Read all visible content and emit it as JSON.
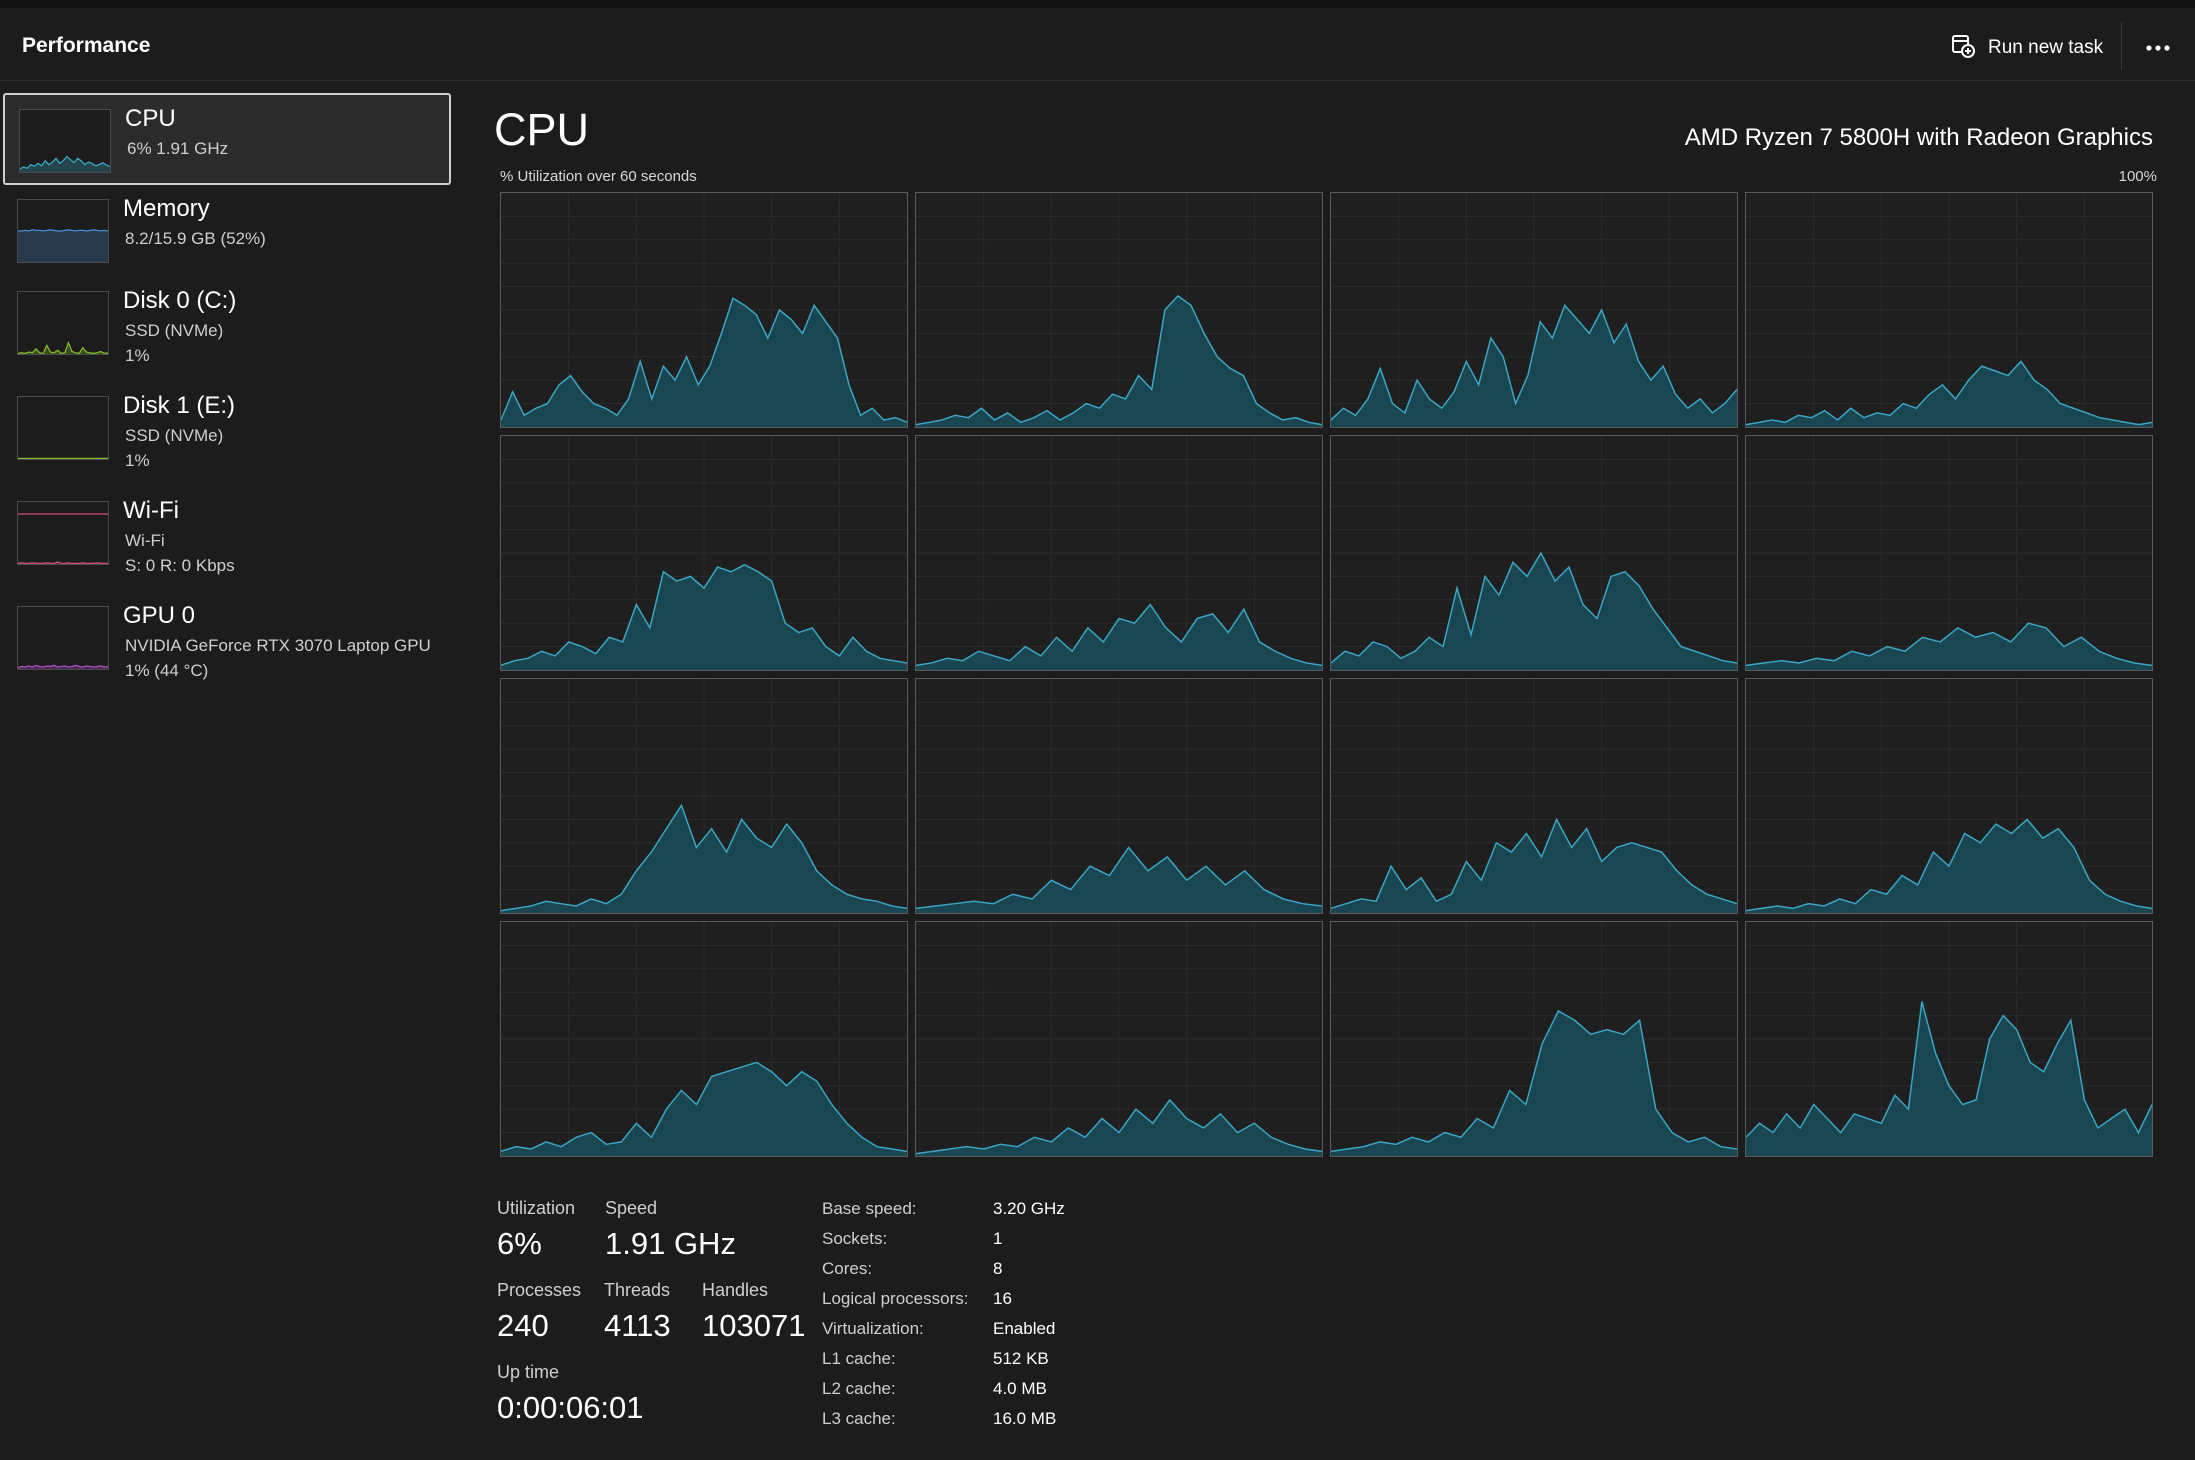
{
  "header": {
    "title": "Performance",
    "run_task_label": "Run new task",
    "run_task_icon": "run-task-icon",
    "more_icon": "more-options-icon"
  },
  "sidebar": {
    "items": [
      {
        "name": "CPU",
        "line1": "6%  1.91 GHz",
        "line2": "",
        "selected": true,
        "color": "#3ba6c4"
      },
      {
        "name": "Memory",
        "line1": "8.2/15.9 GB (52%)",
        "line2": "",
        "selected": false,
        "color": "#4a8fd6"
      },
      {
        "name": "Disk 0 (C:)",
        "line1": "SSD (NVMe)",
        "line2": "1%",
        "selected": false,
        "color": "#7fba2c"
      },
      {
        "name": "Disk 1 (E:)",
        "line1": "SSD (NVMe)",
        "line2": "1%",
        "selected": false,
        "color": "#7fba2c"
      },
      {
        "name": "Wi-Fi",
        "line1": "Wi-Fi",
        "line2": "S: 0  R: 0 Kbps",
        "selected": false,
        "color": "#d14b7a"
      },
      {
        "name": "GPU 0",
        "line1": "NVIDIA GeForce RTX 3070 Laptop GPU",
        "line2": "1%  (44 °C)",
        "selected": false,
        "color": "#b150c7"
      }
    ]
  },
  "main": {
    "title": "CPU",
    "model": "AMD Ryzen 7 5800H with Radeon Graphics",
    "graph_caption": "% Utilization over 60 seconds",
    "graph_max": "100%",
    "line_color": "#3ba6c4",
    "fill_color": "#1a4652"
  },
  "chart_data": {
    "type": "area",
    "title": "% Utilization over 60 seconds",
    "ylim": [
      0,
      100
    ],
    "logical_processors": [
      {
        "values": [
          3,
          15,
          5,
          8,
          10,
          18,
          22,
          15,
          10,
          8,
          5,
          12,
          28,
          12,
          26,
          20,
          30,
          18,
          26,
          40,
          55,
          52,
          48,
          38,
          50,
          46,
          40,
          52,
          45,
          38,
          18,
          5,
          8,
          3,
          4,
          2
        ]
      },
      {
        "values": [
          1,
          2,
          3,
          5,
          4,
          8,
          3,
          6,
          2,
          4,
          7,
          3,
          6,
          10,
          8,
          14,
          12,
          22,
          16,
          50,
          56,
          52,
          40,
          30,
          25,
          22,
          10,
          6,
          3,
          4,
          2,
          1
        ]
      },
      {
        "values": [
          3,
          8,
          5,
          12,
          25,
          10,
          6,
          20,
          12,
          8,
          15,
          28,
          18,
          38,
          30,
          10,
          22,
          45,
          38,
          52,
          46,
          40,
          50,
          36,
          44,
          28,
          20,
          26,
          14,
          8,
          12,
          6,
          10,
          16
        ]
      },
      {
        "values": [
          1,
          2,
          3,
          2,
          5,
          4,
          7,
          3,
          8,
          4,
          6,
          5,
          10,
          8,
          14,
          18,
          12,
          20,
          26,
          24,
          22,
          28,
          20,
          16,
          10,
          8,
          6,
          4,
          3,
          2,
          1,
          2
        ]
      },
      {
        "values": [
          2,
          4,
          5,
          8,
          6,
          12,
          10,
          7,
          14,
          12,
          28,
          18,
          42,
          38,
          40,
          35,
          44,
          42,
          45,
          42,
          38,
          20,
          16,
          18,
          10,
          6,
          14,
          8,
          5,
          4,
          3
        ]
      },
      {
        "values": [
          2,
          3,
          5,
          4,
          8,
          6,
          4,
          10,
          6,
          14,
          8,
          18,
          12,
          22,
          20,
          28,
          18,
          12,
          22,
          24,
          16,
          26,
          12,
          8,
          5,
          3,
          2
        ]
      },
      {
        "values": [
          3,
          8,
          6,
          12,
          10,
          5,
          8,
          14,
          10,
          35,
          15,
          40,
          32,
          46,
          40,
          50,
          38,
          44,
          28,
          22,
          40,
          42,
          36,
          26,
          18,
          10,
          8,
          6,
          4,
          3
        ]
      },
      {
        "values": [
          2,
          3,
          4,
          3,
          5,
          4,
          8,
          6,
          10,
          8,
          14,
          12,
          18,
          14,
          16,
          12,
          20,
          18,
          10,
          14,
          8,
          5,
          3,
          2
        ]
      },
      {
        "values": [
          1,
          2,
          3,
          5,
          4,
          3,
          6,
          4,
          8,
          18,
          26,
          36,
          46,
          28,
          36,
          26,
          40,
          32,
          28,
          38,
          30,
          18,
          12,
          8,
          6,
          5,
          3,
          2
        ]
      },
      {
        "values": [
          2,
          3,
          4,
          5,
          4,
          8,
          6,
          14,
          10,
          20,
          16,
          28,
          18,
          24,
          14,
          20,
          12,
          18,
          10,
          6,
          4,
          3
        ]
      },
      {
        "values": [
          2,
          4,
          6,
          5,
          20,
          10,
          15,
          5,
          8,
          22,
          14,
          30,
          26,
          34,
          24,
          40,
          28,
          36,
          22,
          28,
          30,
          28,
          26,
          18,
          12,
          8,
          6,
          4
        ]
      },
      {
        "values": [
          1,
          2,
          3,
          2,
          4,
          3,
          6,
          4,
          10,
          8,
          16,
          12,
          26,
          20,
          34,
          30,
          38,
          34,
          40,
          32,
          36,
          28,
          14,
          8,
          5,
          3,
          2
        ]
      },
      {
        "values": [
          2,
          4,
          3,
          6,
          4,
          8,
          10,
          5,
          6,
          14,
          8,
          20,
          28,
          22,
          34,
          36,
          38,
          40,
          36,
          30,
          36,
          32,
          22,
          14,
          8,
          4,
          3,
          2
        ]
      },
      {
        "values": [
          1,
          2,
          3,
          4,
          3,
          5,
          4,
          8,
          6,
          12,
          8,
          16,
          10,
          20,
          14,
          24,
          16,
          12,
          18,
          10,
          14,
          8,
          5,
          3,
          2
        ]
      },
      {
        "values": [
          2,
          3,
          4,
          6,
          5,
          8,
          6,
          10,
          8,
          16,
          12,
          28,
          22,
          48,
          62,
          58,
          52,
          54,
          52,
          58,
          20,
          10,
          6,
          8,
          4,
          3
        ]
      },
      {
        "values": [
          8,
          14,
          10,
          18,
          12,
          22,
          16,
          10,
          18,
          16,
          14,
          26,
          20,
          66,
          44,
          30,
          22,
          24,
          50,
          60,
          54,
          40,
          36,
          48,
          58,
          24,
          12,
          16,
          20,
          10,
          22
        ]
      }
    ]
  },
  "stats": {
    "utilization_label": "Utilization",
    "utilization_value": "6%",
    "speed_label": "Speed",
    "speed_value": "1.91 GHz",
    "processes_label": "Processes",
    "processes_value": "240",
    "threads_label": "Threads",
    "threads_value": "4113",
    "handles_label": "Handles",
    "handles_value": "103071",
    "uptime_label": "Up time",
    "uptime_value": "0:00:06:01"
  },
  "specs": [
    {
      "key": "Base speed:",
      "value": "3.20 GHz"
    },
    {
      "key": "Sockets:",
      "value": "1"
    },
    {
      "key": "Cores:",
      "value": "8"
    },
    {
      "key": "Logical processors:",
      "value": "16"
    },
    {
      "key": "Virtualization:",
      "value": "Enabled"
    },
    {
      "key": "L1 cache:",
      "value": "512 KB"
    },
    {
      "key": "L2 cache:",
      "value": "4.0 MB"
    },
    {
      "key": "L3 cache:",
      "value": "16.0 MB"
    }
  ]
}
